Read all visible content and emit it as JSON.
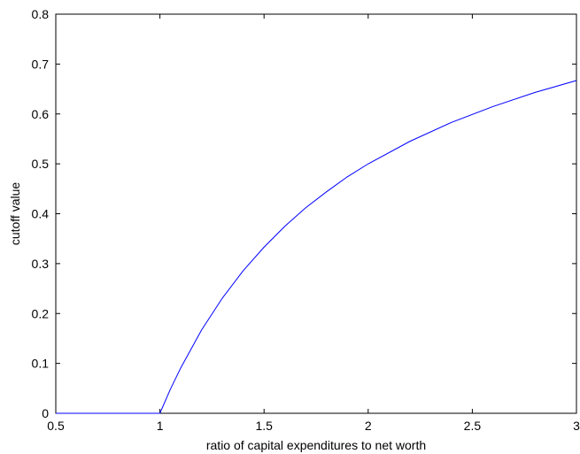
{
  "chart_data": {
    "type": "line",
    "title": "",
    "xlabel": "ratio of capital expenditures to net worth",
    "ylabel": "cutoff value",
    "xlim": [
      0.5,
      3
    ],
    "ylim": [
      0,
      0.8
    ],
    "grid": false,
    "x_ticks": [
      {
        "value": 0.5,
        "label": "0.5"
      },
      {
        "value": 1,
        "label": "1"
      },
      {
        "value": 1.5,
        "label": "1.5"
      },
      {
        "value": 2,
        "label": "2"
      },
      {
        "value": 2.5,
        "label": "2.5"
      },
      {
        "value": 3,
        "label": "3"
      }
    ],
    "y_ticks": [
      {
        "value": 0,
        "label": "0"
      },
      {
        "value": 0.1,
        "label": "0.1"
      },
      {
        "value": 0.2,
        "label": "0.2"
      },
      {
        "value": 0.3,
        "label": "0.3"
      },
      {
        "value": 0.4,
        "label": "0.4"
      },
      {
        "value": 0.5,
        "label": "0.5"
      },
      {
        "value": 0.6,
        "label": "0.6"
      },
      {
        "value": 0.7,
        "label": "0.7"
      },
      {
        "value": 0.8,
        "label": "0.8"
      }
    ],
    "series": [
      {
        "color": "#0000ff",
        "x": [
          0.5,
          0.75,
          1.0,
          1.05,
          1.1,
          1.2,
          1.3,
          1.4,
          1.5,
          1.6,
          1.7,
          1.8,
          1.9,
          2.0,
          2.2,
          2.4,
          2.6,
          2.8,
          3.0
        ],
        "y": [
          0,
          0,
          0,
          0.048,
          0.091,
          0.167,
          0.231,
          0.286,
          0.333,
          0.375,
          0.412,
          0.444,
          0.474,
          0.5,
          0.545,
          0.583,
          0.615,
          0.643,
          0.667
        ]
      }
    ]
  }
}
